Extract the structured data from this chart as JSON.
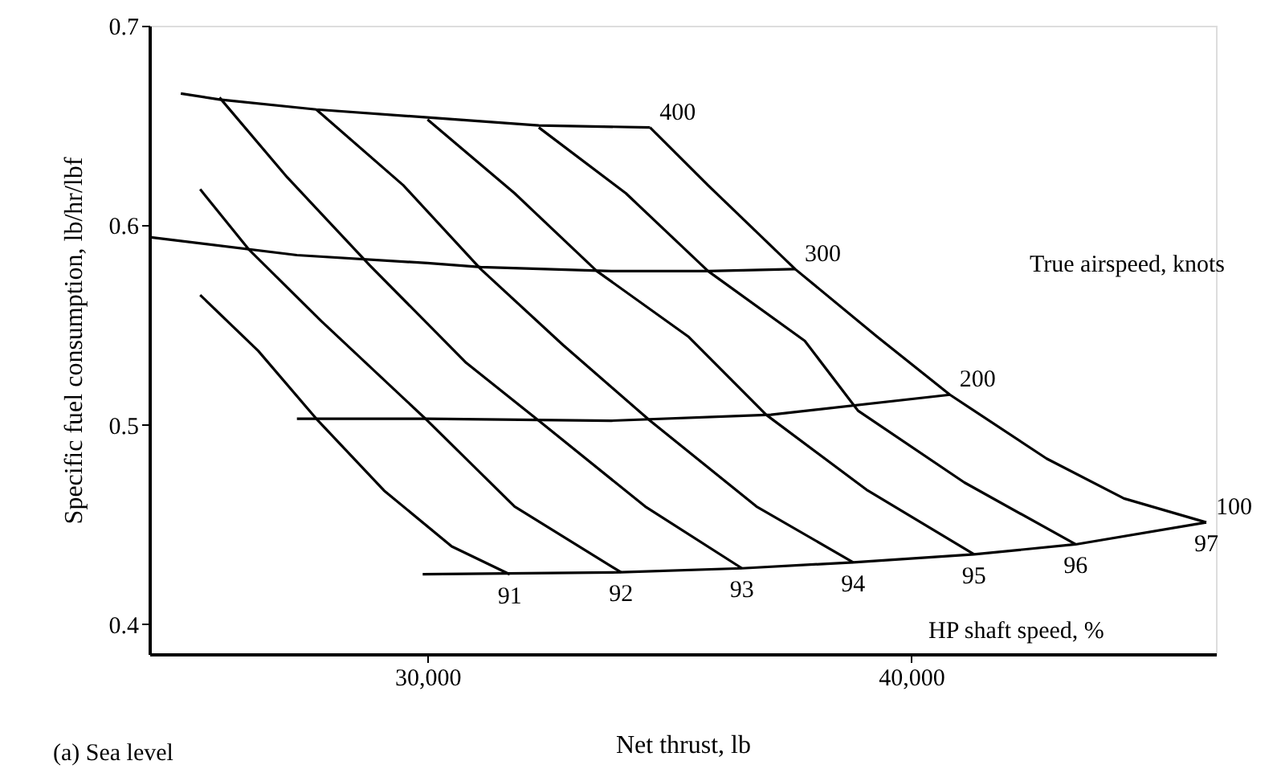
{
  "chart_data": {
    "type": "line",
    "xlabel": "Net thrust, lb",
    "ylabel": "Specific fuel consumption, lb/hr/lbf",
    "xlim": [
      24250,
      46300
    ],
    "ylim": [
      0.385,
      0.7
    ],
    "xticks": [
      {
        "value": 30000,
        "label": "30,000"
      },
      {
        "value": 40000,
        "label": "40,000"
      }
    ],
    "yticks": [
      0.4,
      0.5,
      0.6,
      0.7
    ],
    "grid": false,
    "marker": "none",
    "line_style": "solid",
    "annotations": [
      "True airspeed, knots",
      "HP shaft speed, %",
      "(a) Sea level"
    ],
    "series": [
      {
        "name": "400",
        "color": "#000000",
        "x": [
          24900,
          25700,
          27700,
          30000,
          32300,
          34600
        ],
        "values": [
          0.666,
          0.663,
          0.658,
          0.654,
          0.65,
          0.649
        ]
      },
      {
        "name": "300",
        "color": "#000000",
        "x": [
          24250,
          27300,
          30000,
          31100,
          33800,
          35800,
          37600
        ],
        "values": [
          0.594,
          0.585,
          0.581,
          0.579,
          0.577,
          0.577,
          0.578
        ]
      },
      {
        "name": "200",
        "color": "#000000",
        "x": [
          27300,
          30000,
          33800,
          37100,
          40800
        ],
        "values": [
          0.503,
          0.503,
          0.502,
          0.505,
          0.515
        ]
      },
      {
        "name": "100",
        "color": "#000000",
        "x": [
          29900,
          34000,
          36500,
          38800,
          41300,
          43400,
          46100
        ],
        "values": [
          0.425,
          0.426,
          0.428,
          0.431,
          0.435,
          0.44,
          0.451
        ]
      },
      {
        "name": "91",
        "color": "#000000",
        "x": [
          25300,
          26500,
          27700,
          29100,
          30500,
          31700
        ],
        "values": [
          0.565,
          0.537,
          0.503,
          0.467,
          0.439,
          0.425
        ]
      },
      {
        "name": "92",
        "color": "#000000",
        "x": [
          25300,
          26300,
          27800,
          30000,
          31800,
          34000
        ],
        "values": [
          0.618,
          0.588,
          0.552,
          0.502,
          0.459,
          0.426
        ]
      },
      {
        "name": "93",
        "color": "#000000",
        "x": [
          25700,
          27100,
          28800,
          30800,
          32300,
          34500,
          36500
        ],
        "values": [
          0.664,
          0.624,
          0.58,
          0.531,
          0.502,
          0.459,
          0.428
        ]
      },
      {
        "name": "94",
        "color": "#000000",
        "x": [
          27700,
          29500,
          31100,
          32800,
          34600,
          36800,
          38800
        ],
        "values": [
          0.658,
          0.62,
          0.578,
          0.54,
          0.502,
          0.459,
          0.431
        ]
      },
      {
        "name": "95",
        "color": "#000000",
        "x": [
          30000,
          31800,
          33500,
          35400,
          37000,
          39100,
          41300
        ],
        "values": [
          0.653,
          0.616,
          0.577,
          0.544,
          0.505,
          0.467,
          0.435
        ]
      },
      {
        "name": "96",
        "color": "#000000",
        "x": [
          32300,
          34100,
          35800,
          37800,
          38900,
          41100,
          43400
        ],
        "values": [
          0.649,
          0.616,
          0.577,
          0.542,
          0.507,
          0.471,
          0.44
        ]
      },
      {
        "name": "97",
        "color": "#000000",
        "x": [
          34600,
          35800,
          37600,
          39300,
          40800,
          42800,
          44400,
          46100
        ],
        "values": [
          0.649,
          0.62,
          0.578,
          0.544,
          0.515,
          0.483,
          0.463,
          0.451
        ]
      }
    ]
  }
}
